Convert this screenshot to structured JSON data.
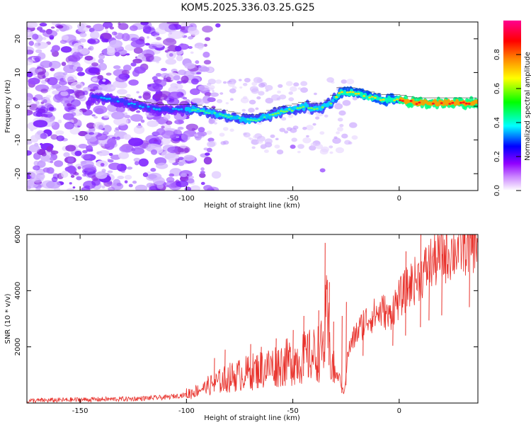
{
  "title": "KOM5.2025.336.03.25.G25",
  "chart_data": [
    {
      "type": "heatmap",
      "xlabel": "Height of straight line (km)",
      "ylabel": "Frequency (Hz)",
      "xlim": [
        -175,
        37
      ],
      "ylim": [
        -25,
        25
      ],
      "xticks": [
        -150,
        -100,
        -50,
        0
      ],
      "yticks": [
        -20,
        -10,
        0,
        10,
        20
      ],
      "colorbar": {
        "label": "Normalized spectral amplitude",
        "range": [
          0,
          1
        ],
        "ticks": [
          "0.0",
          "0.2",
          "0.4",
          "0.6",
          "0.8"
        ],
        "stops": [
          "#ffffff",
          "#9000ff",
          "#0000ff",
          "#00ffff",
          "#00ff00",
          "#ffff00",
          "#ff8000",
          "#ff0000",
          "#ff0090"
        ]
      },
      "ridge": {
        "x": [
          -145,
          -135,
          -128,
          -122,
          -112,
          -100,
          -95,
          -88,
          -80,
          -73,
          -66,
          -58,
          -50,
          -44,
          -38,
          -32,
          -28,
          -22,
          -15,
          -8,
          0,
          8,
          15,
          22,
          30,
          37
        ],
        "y": [
          3,
          2,
          1,
          0,
          -1,
          -1,
          -1,
          -2,
          -3,
          -4,
          -4,
          -2,
          -1,
          0,
          -1,
          1,
          4,
          4,
          3,
          2,
          2,
          1,
          1,
          1,
          1,
          1
        ]
      }
    },
    {
      "type": "line",
      "xlabel": "Height of straight line (km)",
      "ylabel": "SNR (10 * v/v)",
      "xlim": [
        -175,
        37
      ],
      "ylim": [
        0,
        6000
      ],
      "xticks": [
        -150,
        -100,
        -50,
        0
      ],
      "yticks": [
        2000,
        4000,
        6000
      ],
      "series": [
        {
          "name": "SNR",
          "color": "#e8302a",
          "x": [
            -175,
            -150,
            -125,
            -110,
            -100,
            -95,
            -90,
            -85,
            -80,
            -75,
            -70,
            -65,
            -60,
            -55,
            -50,
            -45,
            -40,
            -36,
            -34,
            -32,
            -30,
            -28,
            -26,
            -24,
            -22,
            -20,
            -15,
            -10,
            -7,
            -5,
            -3,
            0,
            3,
            5,
            8,
            10,
            12,
            15,
            20,
            25,
            30,
            37
          ],
          "y": [
            80,
            120,
            150,
            200,
            300,
            450,
            600,
            750,
            900,
            1000,
            1100,
            1200,
            1300,
            1400,
            1500,
            1600,
            1700,
            1900,
            3000,
            1500,
            1000,
            900,
            300,
            1800,
            2200,
            2500,
            3000,
            3200,
            3300,
            3000,
            3400,
            3700,
            4000,
            4200,
            4400,
            4500,
            4700,
            5000,
            5200,
            5400,
            5600,
            5800
          ]
        }
      ],
      "spikes": {
        "x": [
          -87,
          -82,
          -70,
          -65,
          -58,
          -50,
          -45,
          -38,
          -35,
          -33,
          -31,
          -27,
          -25,
          -17,
          -3,
          3,
          10,
          14,
          20,
          33
        ],
        "y": [
          1600,
          1900,
          2100,
          2000,
          2300,
          2600,
          3100,
          3300,
          5700,
          4300,
          2900,
          3100,
          3600,
          3300,
          3600,
          5400,
          6200,
          4700,
          5300,
          6000
        ]
      }
    }
  ]
}
